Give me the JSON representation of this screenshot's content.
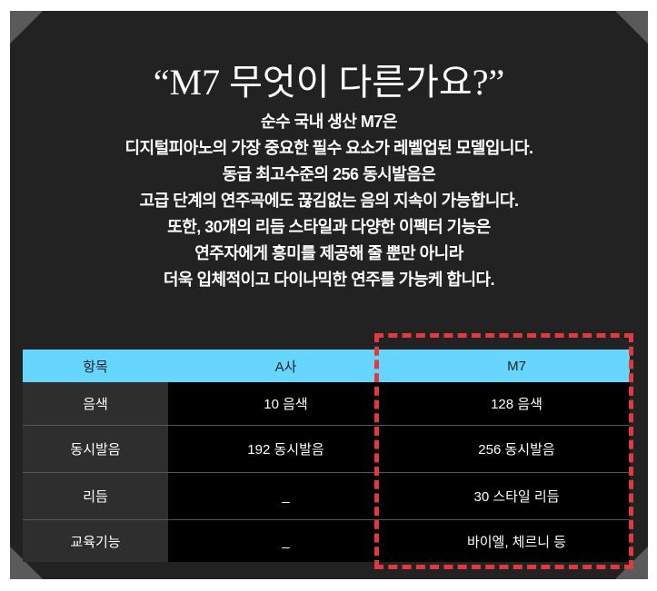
{
  "title": "“M7 무엇이 다른가요?”",
  "description": [
    "순수 국내 생산 M7은",
    "디지털피아노의 가장 중요한 필수 요소가  레벨업된 모델입니다.",
    "동급 최고수준의 256 동시발음은",
    "고급 단계의 연주곡에도 끊김없는 음의 지속이 가능합니다.",
    "또한, 30개의 리듬 스타일과 다양한 이펙터 기능은",
    "연주자에게 흥미를 제공해 줄 뿐만 아니라",
    "더욱 입체적이고 다이나믹한 연주를 가능케 합니다."
  ],
  "table": {
    "headers": [
      "항목",
      "A사",
      "M7"
    ],
    "rows": [
      [
        "음색",
        "10 음색",
        "128 음색"
      ],
      [
        "동시발음",
        "192 동시발음",
        "256 동시발음"
      ],
      [
        "리듬",
        "_",
        "30 스타일 리듬"
      ],
      [
        "교육기능",
        "_",
        "바이엘, 체르니 등"
      ]
    ]
  },
  "colors": {
    "header": "#66d6ff",
    "highlight": "#e03a3e",
    "panel": "#222222"
  }
}
